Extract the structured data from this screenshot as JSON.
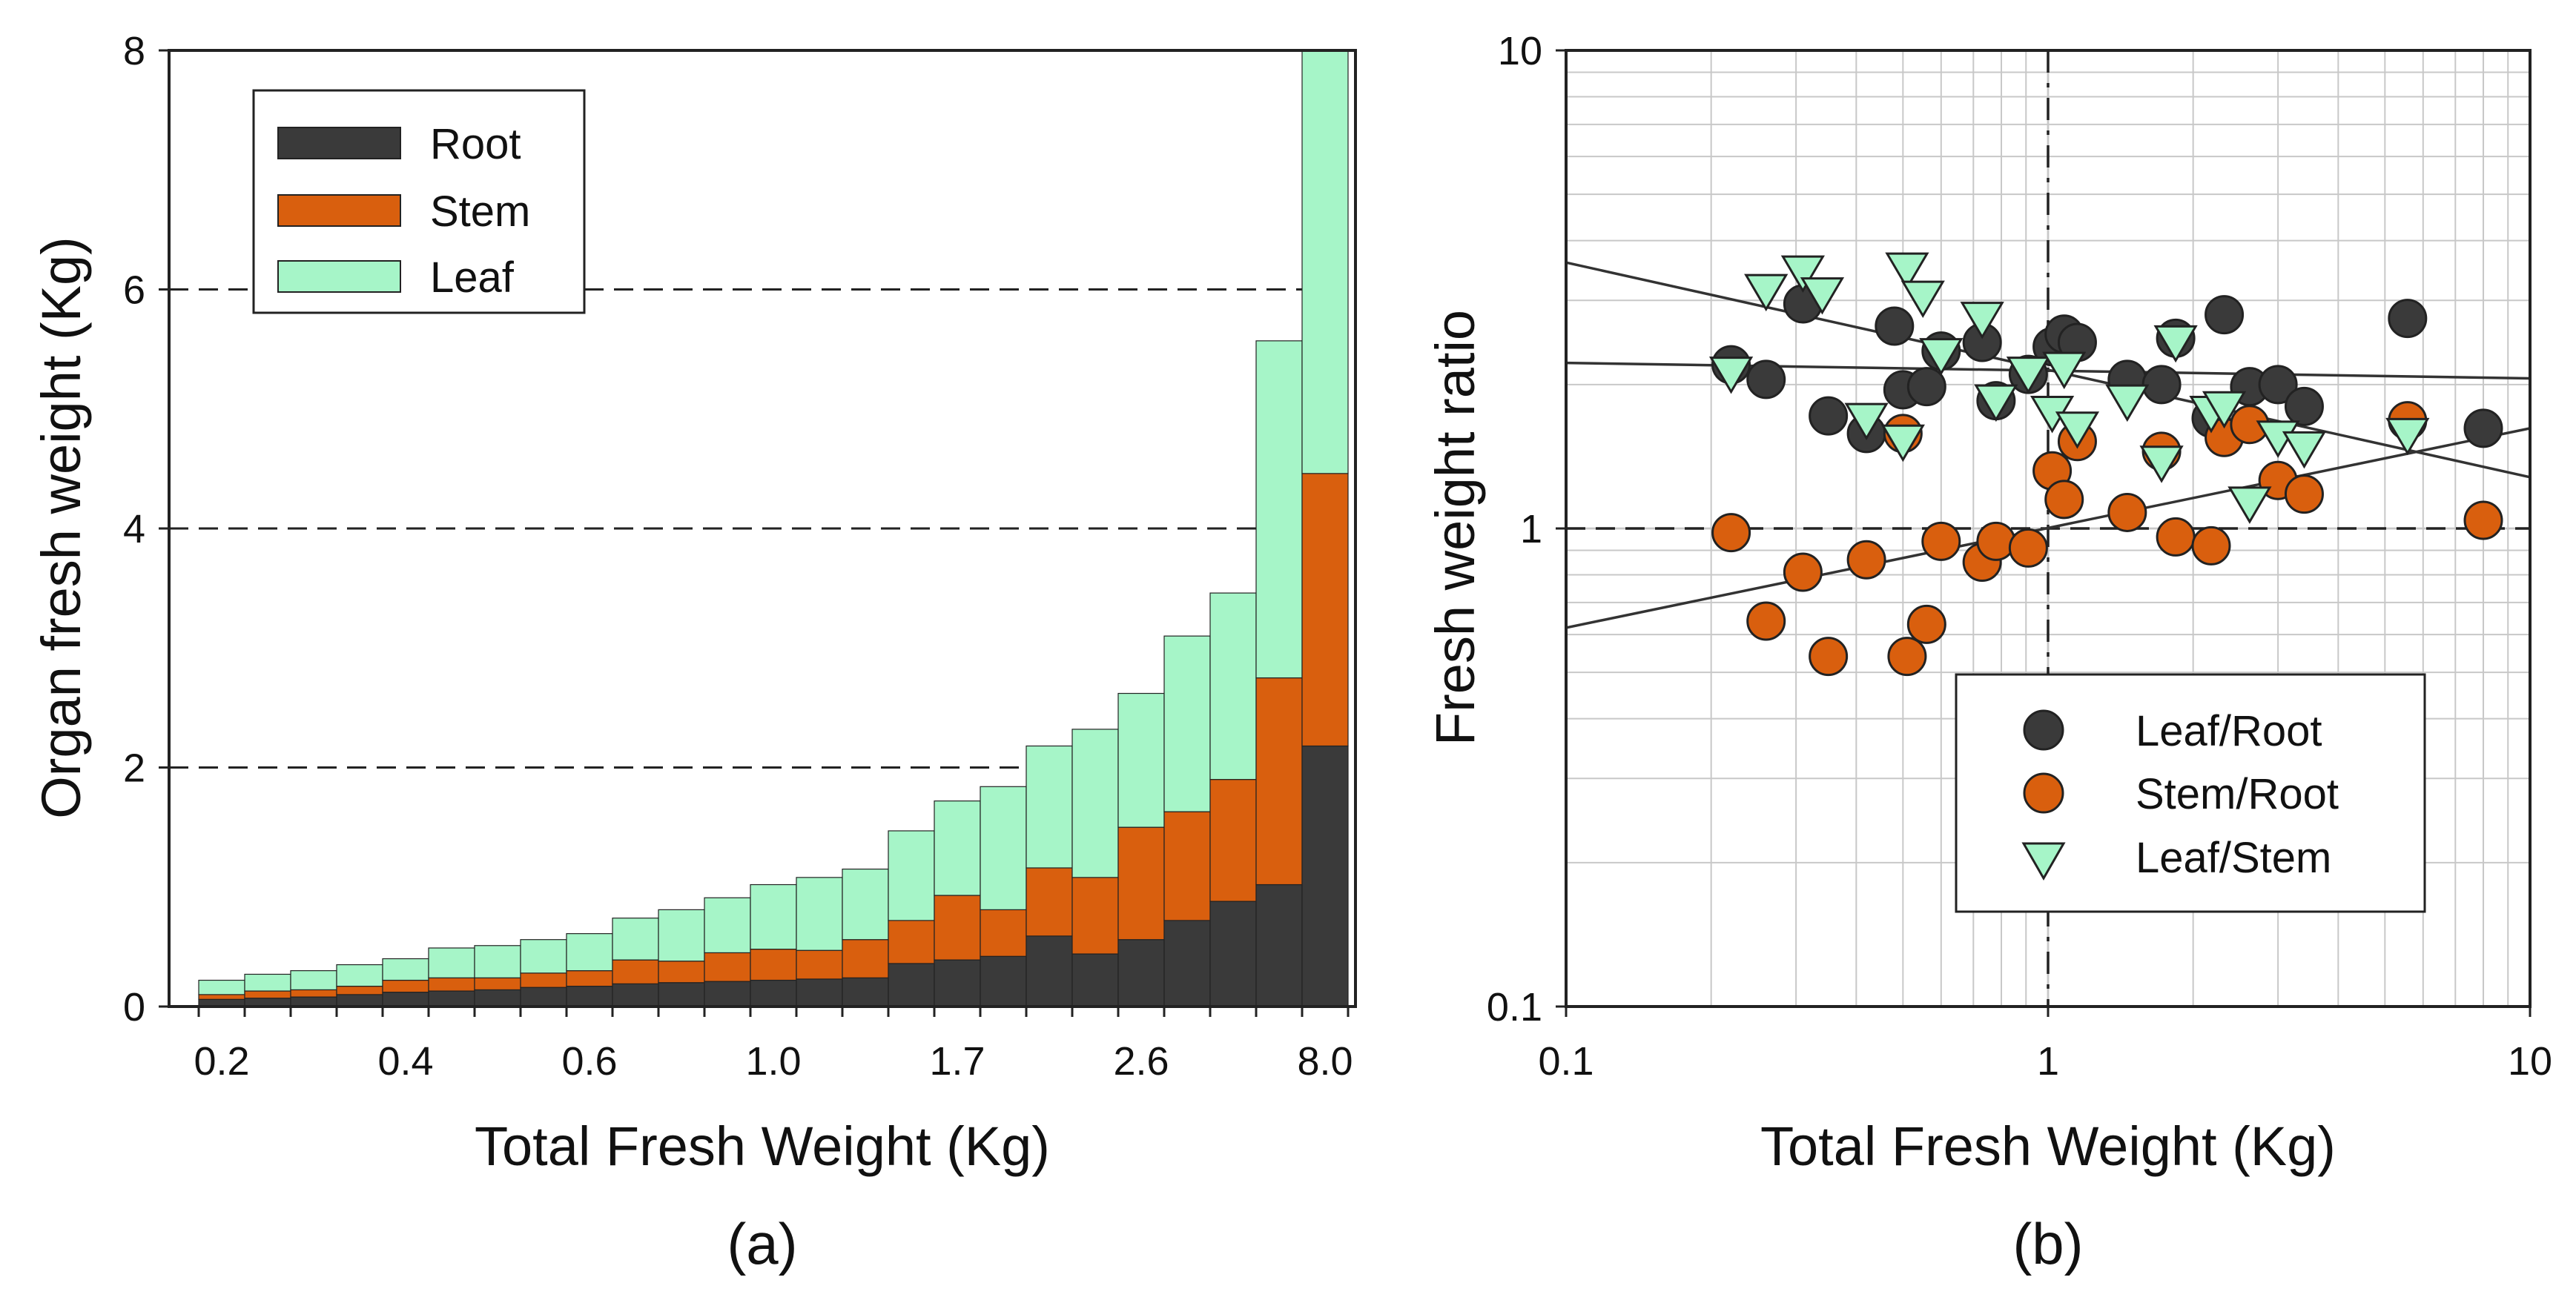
{
  "colors": {
    "root": "#3a3a3a",
    "stem": "#d95f0e",
    "leaf": "#a6f5c8",
    "outline": "#222222",
    "grid": "#c8c8c8"
  },
  "chart_data": [
    {
      "type": "bar",
      "stacked": true,
      "panel_label": "(a)",
      "xlabel": "Total Fresh Weight (Kg)",
      "ylabel": "Organ fresh weight (Kg)",
      "ylim": [
        0,
        8
      ],
      "yticks": [
        "0",
        "2",
        "4",
        "6",
        "8"
      ],
      "xtick_labels": [
        "0.2",
        "0.4",
        "0.6",
        "1.0",
        "1.7",
        "2.6",
        "8.0"
      ],
      "reference_lines": [
        2,
        4,
        6
      ],
      "legend_position": "top-left",
      "series": [
        {
          "name": "Root",
          "color": "#3a3a3a",
          "values": [
            0.06,
            0.07,
            0.08,
            0.1,
            0.12,
            0.13,
            0.14,
            0.16,
            0.17,
            0.19,
            0.2,
            0.21,
            0.22,
            0.23,
            0.24,
            0.36,
            0.39,
            0.42,
            0.59,
            0.44,
            0.56,
            0.72,
            0.88,
            1.02,
            2.18
          ]
        },
        {
          "name": "Stem",
          "color": "#d95f0e",
          "values": [
            0.04,
            0.06,
            0.06,
            0.07,
            0.1,
            0.11,
            0.1,
            0.12,
            0.13,
            0.2,
            0.18,
            0.24,
            0.26,
            0.24,
            0.32,
            0.36,
            0.54,
            0.39,
            0.57,
            0.64,
            0.94,
            0.91,
            1.02,
            1.73,
            2.28
          ]
        },
        {
          "name": "Leaf",
          "color": "#a6f5c8",
          "values": [
            0.12,
            0.14,
            0.16,
            0.18,
            0.18,
            0.25,
            0.27,
            0.28,
            0.31,
            0.35,
            0.43,
            0.46,
            0.54,
            0.61,
            0.59,
            0.75,
            0.79,
            1.03,
            1.02,
            1.24,
            1.12,
            1.47,
            1.56,
            2.82,
            3.54
          ]
        }
      ],
      "totals": [
        0.22,
        0.27,
        0.3,
        0.35,
        0.4,
        0.49,
        0.51,
        0.56,
        0.61,
        0.74,
        0.81,
        0.91,
        1.02,
        1.08,
        1.15,
        1.47,
        1.72,
        1.84,
        2.18,
        2.32,
        2.62,
        3.1,
        3.46,
        5.57,
        8.0
      ]
    },
    {
      "type": "scatter",
      "panel_label": "(b)",
      "xscale": "log",
      "yscale": "log",
      "xlim": [
        0.1,
        10
      ],
      "ylim": [
        0.1,
        10
      ],
      "xlabel": "Total Fresh Weight (Kg)",
      "ylabel": "Fresh weight ratio",
      "xtick_labels": [
        "0.1",
        "1",
        "10"
      ],
      "ytick_labels": [
        "0.1",
        "1",
        "10"
      ],
      "reference_lines": {
        "x": 1,
        "y": 1
      },
      "legend_position": "bottom-right",
      "series": [
        {
          "name": "Leaf/Root",
          "marker": "circle",
          "color": "#3a3a3a",
          "x": [
            0.22,
            0.26,
            0.31,
            0.35,
            0.42,
            0.48,
            0.5,
            0.56,
            0.6,
            0.73,
            0.78,
            0.91,
            1.02,
            1.08,
            1.15,
            1.46,
            1.72,
            1.84,
            2.18,
            2.32,
            2.62,
            3.0,
            3.4,
            5.57,
            8.0
          ],
          "y": [
            2.2,
            2.05,
            2.95,
            1.72,
            1.58,
            2.65,
            1.95,
            1.98,
            2.35,
            2.45,
            1.85,
            2.1,
            2.4,
            2.55,
            2.45,
            2.05,
            2.0,
            2.5,
            1.7,
            2.8,
            1.98,
            2.0,
            1.8,
            2.75,
            1.62
          ]
        },
        {
          "name": "Stem/Root",
          "marker": "circle",
          "color": "#d95f0e",
          "x": [
            0.22,
            0.26,
            0.31,
            0.35,
            0.42,
            0.5,
            0.51,
            0.56,
            0.6,
            0.73,
            0.78,
            0.91,
            1.02,
            1.08,
            1.15,
            1.46,
            1.72,
            1.84,
            2.18,
            2.32,
            2.62,
            3.0,
            3.4,
            5.57,
            8.0
          ],
          "y": [
            0.98,
            0.64,
            0.81,
            0.54,
            0.86,
            1.58,
            0.54,
            0.63,
            0.94,
            0.85,
            0.94,
            0.91,
            1.32,
            1.15,
            1.52,
            1.08,
            1.45,
            0.96,
            0.92,
            1.55,
            1.65,
            1.26,
            1.18,
            1.68,
            1.04
          ]
        },
        {
          "name": "Leaf/Stem",
          "marker": "triangle-down",
          "color": "#a6f5c8",
          "x": [
            0.22,
            0.26,
            0.31,
            0.34,
            0.42,
            0.5,
            0.51,
            0.55,
            0.6,
            0.73,
            0.78,
            0.91,
            1.02,
            1.08,
            1.15,
            1.46,
            1.72,
            1.84,
            2.18,
            2.32,
            2.62,
            3.0,
            3.4,
            5.57
          ],
          "y": [
            2.15,
            3.2,
            3.5,
            3.15,
            1.72,
            1.55,
            3.55,
            3.1,
            2.35,
            2.8,
            1.88,
            2.15,
            1.78,
            2.2,
            1.65,
            1.88,
            1.4,
            2.5,
            1.78,
            1.82,
            1.15,
            1.58,
            1.5,
            1.6
          ]
        }
      ],
      "trend_lines": [
        {
          "name": "Leaf/Root fit",
          "x": [
            0.1,
            10
          ],
          "y": [
            2.22,
            2.06
          ]
        },
        {
          "name": "Stem/Root fit",
          "x": [
            0.1,
            10
          ],
          "y": [
            0.62,
            1.62
          ]
        },
        {
          "name": "Leaf/Stem fit",
          "x": [
            0.1,
            10
          ],
          "y": [
            3.6,
            1.28
          ]
        }
      ]
    }
  ]
}
